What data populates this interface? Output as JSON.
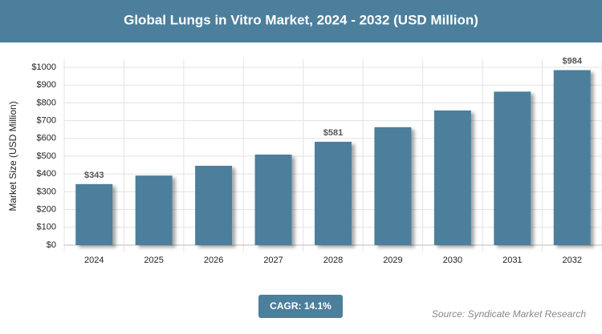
{
  "chart_data": {
    "type": "bar",
    "title": "Global Lungs in Vitro Market, 2024 - 2032 (USD Million)",
    "y_label": "Market Size (USD Million)",
    "categories": [
      "2024",
      "2025",
      "2026",
      "2027",
      "2028",
      "2029",
      "2030",
      "2031",
      "2032"
    ],
    "values": [
      343,
      391,
      446,
      509,
      581,
      663,
      757,
      863,
      984
    ],
    "value_labels": [
      "$343",
      null,
      null,
      null,
      "$581",
      null,
      null,
      null,
      "$984"
    ],
    "color": "#4c7f9c",
    "ylim": [
      0,
      1000
    ],
    "yticks": [
      {
        "value": 0,
        "label": "$0"
      },
      {
        "value": 100,
        "label": "$100"
      },
      {
        "value": 200,
        "label": "$200"
      },
      {
        "value": 300,
        "label": "$300"
      },
      {
        "value": 400,
        "label": "$400"
      },
      {
        "value": 500,
        "label": "$500"
      },
      {
        "value": 600,
        "label": "$600"
      },
      {
        "value": 700,
        "label": "$700"
      },
      {
        "value": 800,
        "label": "$800"
      },
      {
        "value": 900,
        "label": "$900"
      },
      {
        "value": 1000,
        "label": "$1000"
      }
    ],
    "grid": true,
    "cagr": "CAGR: 14.1%",
    "source": "Source: Syndicate Market Research"
  }
}
